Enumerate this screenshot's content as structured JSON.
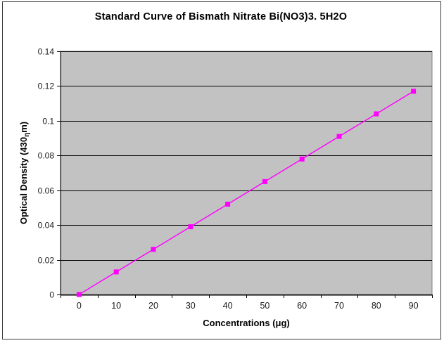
{
  "page": {
    "background": "#ffffff",
    "frame_border_color": "#3a3a3a"
  },
  "chart_data": {
    "type": "line",
    "title": "Standard Curve of Bismath Nitrate Bi(NO3)3. 5H2O",
    "xlabel": "Concentrations (μg)",
    "ylabel_prefix": "Optical Density (430",
    "ylabel_sub": "η",
    "ylabel_suffix": "m)",
    "categories": [
      "0",
      "10",
      "20",
      "30",
      "40",
      "50",
      "60",
      "70",
      "80",
      "90"
    ],
    "values": [
      0,
      0.013,
      0.026,
      0.039,
      0.052,
      0.065,
      0.078,
      0.091,
      0.104,
      0.117
    ],
    "ylim": [
      0,
      0.14
    ],
    "ytick_values": [
      0,
      0.02,
      0.04,
      0.06,
      0.08,
      0.1,
      0.12,
      0.14
    ],
    "ytick_labels": [
      "0",
      "0.02",
      "0.04",
      "0.06",
      "0.08",
      "0.1",
      "0.12",
      "0.14"
    ],
    "grid": true,
    "legend": "none",
    "colors": {
      "plot_bg": "#c2c2c2",
      "plot_border": "#808080",
      "gridline": "#000000",
      "axis": "#000000",
      "series_line": "#ff00ff",
      "marker_fill": "#ff00ff",
      "tick_text": "#1a1a1a",
      "label_text": "#000000"
    },
    "marker": "square"
  }
}
